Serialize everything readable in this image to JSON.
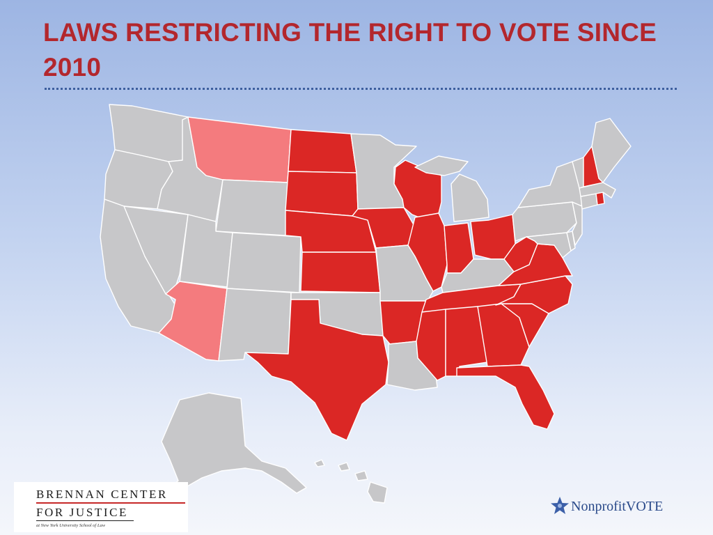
{
  "slide": {
    "title": "LAWS RESTRICTING THE RIGHT TO VOTE SINCE 2010"
  },
  "map": {
    "colors": {
      "restricted": "#db2725",
      "partial": "#f47b7e",
      "none": "#c7c7c9",
      "border": "#ffffff"
    },
    "state_status": {
      "WA": "none",
      "OR": "none",
      "CA": "none",
      "NV": "none",
      "ID": "none",
      "MT": "partial",
      "WY": "none",
      "UT": "none",
      "CO": "none",
      "AZ": "partial",
      "NM": "none",
      "ND": "restricted",
      "SD": "restricted",
      "NE": "restricted",
      "KS": "restricted",
      "OK": "none",
      "TX": "restricted",
      "MN": "none",
      "IA": "restricted",
      "MO": "none",
      "AR": "restricted",
      "LA": "none",
      "WI": "restricted",
      "IL": "restricted",
      "MI": "none",
      "IN": "restricted",
      "OH": "restricted",
      "KY": "none",
      "TN": "restricted",
      "MS": "restricted",
      "AL": "restricted",
      "GA": "restricted",
      "FL": "restricted",
      "SC": "restricted",
      "NC": "restricted",
      "VA": "restricted",
      "WV": "restricted",
      "PA": "none",
      "NY": "none",
      "VT": "none",
      "NH": "restricted",
      "ME": "none",
      "MA": "none",
      "RI": "restricted",
      "CT": "none",
      "NJ": "none",
      "DE": "none",
      "MD": "none",
      "AK": "none",
      "HI": "none"
    }
  },
  "logos": {
    "brennan": {
      "line1": "BRENNAN CENTER",
      "line2": "FOR JUSTICE",
      "line3": "at New York University School of Law"
    },
    "nonprofit_vote": {
      "text": "NonprofitVOTE",
      "icon": "star-icon"
    }
  }
}
